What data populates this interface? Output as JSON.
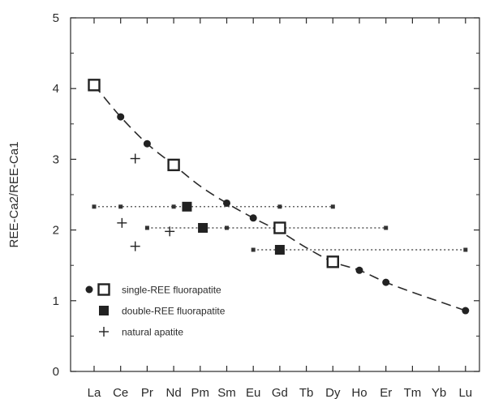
{
  "chart_data": {
    "type": "scatter",
    "title": "",
    "ylabel": "REE-Ca2/REE-Ca1",
    "xlabel": "",
    "categories": [
      "La",
      "Ce",
      "Pr",
      "Nd",
      "Pm",
      "Sm",
      "Eu",
      "Gd",
      "Tb",
      "Dy",
      "Ho",
      "Er",
      "Tm",
      "Yb",
      "Lu"
    ],
    "ylim": [
      0,
      5
    ],
    "yticks": [
      0,
      1,
      2,
      3,
      4,
      5
    ],
    "grid": false,
    "legend": {
      "placement": "bottom-left",
      "entries": [
        {
          "label": "single-REE fluorapatite",
          "markers": [
            "filled-circle",
            "open-square"
          ]
        },
        {
          "label": "double-REE fluorapatite",
          "markers": [
            "filled-square"
          ]
        },
        {
          "label": "natural apatite",
          "markers": [
            "plus"
          ]
        }
      ]
    },
    "series": [
      {
        "marker": "filled-circle",
        "points": [
          {
            "x": "Ce",
            "y": 3.6
          },
          {
            "x": "Pr",
            "y": 3.22
          },
          {
            "x": "Sm",
            "y": 2.38
          },
          {
            "x": "Eu",
            "y": 2.17
          },
          {
            "x": "Ho",
            "y": 1.43
          },
          {
            "x": "Er",
            "y": 1.26
          },
          {
            "x": "Lu",
            "y": 0.86
          }
        ]
      },
      {
        "marker": "open-square",
        "points": [
          {
            "x": "La",
            "y": 4.05
          },
          {
            "x": "Nd",
            "y": 2.92
          },
          {
            "x": "Gd",
            "y": 2.03
          },
          {
            "x": "Dy",
            "y": 1.55
          }
        ]
      },
      {
        "marker": "filled-square",
        "points": [
          {
            "x": 4.5,
            "y": 2.33
          },
          {
            "x": 5.1,
            "y": 2.03
          },
          {
            "x": 8.0,
            "y": 1.72
          }
        ]
      },
      {
        "marker": "plus",
        "points": [
          {
            "x": 2.55,
            "y": 3.01
          },
          {
            "x": 2.05,
            "y": 2.1
          },
          {
            "x": 2.55,
            "y": 1.77
          },
          {
            "x": 3.85,
            "y": 1.98
          }
        ]
      }
    ],
    "trend_curve": {
      "style": "dashed",
      "points": [
        {
          "x": 1.0,
          "y": 4.05
        },
        {
          "x": 2.0,
          "y": 3.6
        },
        {
          "x": 3.0,
          "y": 3.22
        },
        {
          "x": 4.0,
          "y": 2.92
        },
        {
          "x": 5.0,
          "y": 2.62
        },
        {
          "x": 6.0,
          "y": 2.38
        },
        {
          "x": 7.0,
          "y": 2.17
        },
        {
          "x": 8.0,
          "y": 1.98
        },
        {
          "x": 9.0,
          "y": 1.75
        },
        {
          "x": 10.0,
          "y": 1.55
        },
        {
          "x": 11.0,
          "y": 1.43
        },
        {
          "x": 12.0,
          "y": 1.26
        },
        {
          "x": 13.0,
          "y": 1.12
        },
        {
          "x": 14.0,
          "y": 0.99
        },
        {
          "x": 15.0,
          "y": 0.86
        }
      ]
    },
    "reference_lines": [
      {
        "style": "dotted",
        "y": 2.33,
        "x_from": 1.0,
        "x_to": 10.0,
        "nodes": [
          1.0,
          2.0,
          4.0,
          8.0,
          10.0
        ]
      },
      {
        "style": "dotted",
        "y": 2.03,
        "x_from": 3.0,
        "x_to": 12.0,
        "nodes": [
          3.0,
          6.0,
          12.0
        ]
      },
      {
        "style": "dotted",
        "y": 1.72,
        "x_from": 7.0,
        "x_to": 15.0,
        "nodes": [
          7.0,
          15.0
        ]
      }
    ]
  }
}
